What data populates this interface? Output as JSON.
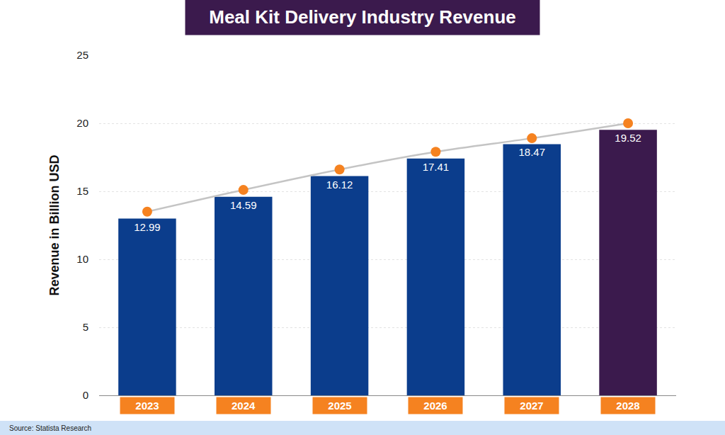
{
  "chart_data": {
    "type": "bar",
    "title": "Meal Kit Delivery Industry Revenue",
    "ylabel": "Revenue in Billion USD",
    "source": "Source: Statista Research",
    "categories": [
      "2023",
      "2024",
      "2025",
      "2026",
      "2027",
      "2028"
    ],
    "series": [
      {
        "type": "bar",
        "colors": [
          "#0b3d8c",
          "#0b3d8c",
          "#0b3d8c",
          "#0b3d8c",
          "#0b3d8c",
          "#3b1a4d"
        ],
        "values": [
          12.99,
          14.59,
          16.12,
          17.41,
          18.47,
          19.52
        ],
        "data_labels": true
      },
      {
        "type": "line",
        "color": "#f58220",
        "marker": "circle",
        "line_style": "solid",
        "values": [
          13.5,
          15.1,
          16.6,
          17.9,
          18.9,
          20.0
        ]
      }
    ],
    "ylim": [
      0,
      25
    ],
    "yticks": [
      0,
      5,
      10,
      15,
      20,
      25
    ],
    "grid": true
  }
}
